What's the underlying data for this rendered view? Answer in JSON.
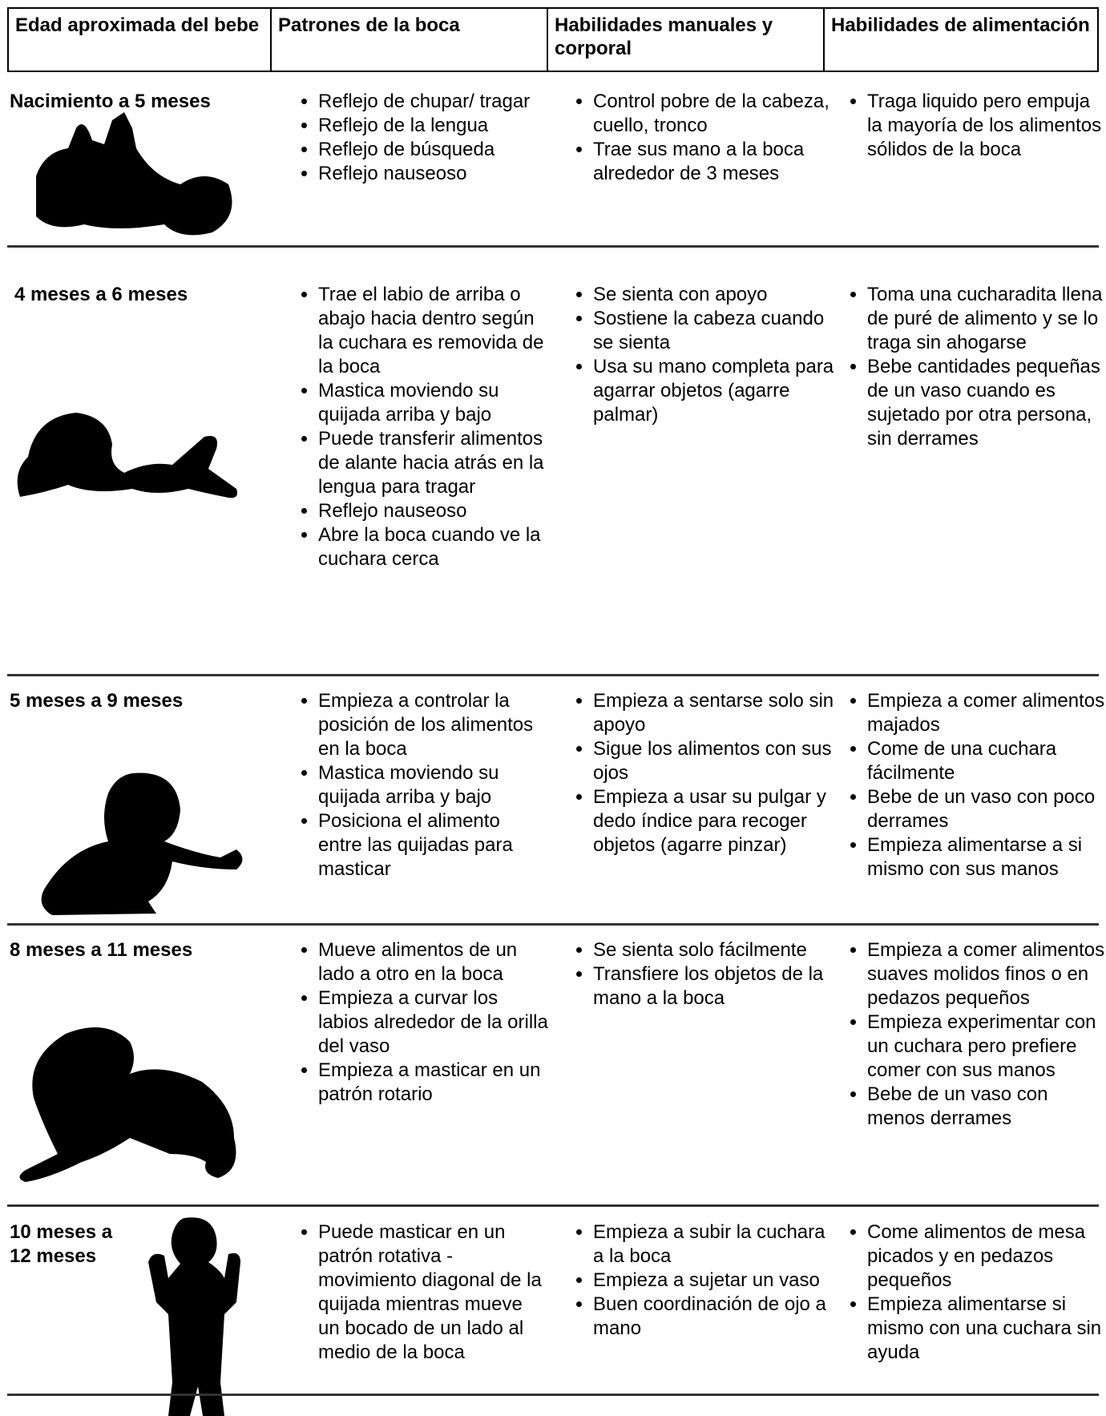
{
  "table": {
    "headers": [
      "Edad aproximada del bebe",
      "Patrones de la boca",
      "Habilidades manuales y corporal",
      "Habilidades de alimentación"
    ],
    "rows": [
      {
        "age": "Nacimiento a 5 meses",
        "mouth": [
          "Reflejo de chupar/ tragar",
          "Reflejo de la lengua",
          "Reflejo de búsqueda",
          "Reflejo nauseoso"
        ],
        "hands": [
          "Control pobre de la cabeza, cuello, tronco",
          "Trae sus mano a la boca alrededor de 3 meses"
        ],
        "feeding": [
          "Traga liquido pero empuja la mayoría de los alimentos sólidos de la boca"
        ]
      },
      {
        "age": "4 meses a 6 meses",
        "mouth": [
          "Trae el labio de arriba o abajo hacia dentro según la cuchara es removida de la boca",
          "Mastica moviendo su quijada arriba y bajo",
          "Puede transferir alimentos de alante hacia atrás en la lengua para tragar",
          "Reflejo nauseoso",
          "Abre la boca cuando ve la cuchara cerca"
        ],
        "hands": [
          "Se sienta con apoyo",
          "Sostiene la cabeza cuando se sienta",
          "Usa su mano completa para agarrar objetos (agarre palmar)"
        ],
        "feeding": [
          "Toma una cucharadita llena de puré de alimento y se lo traga sin ahogarse",
          "Bebe cantidades pequeñas de un vaso cuando es sujetado por otra persona, sin derrames"
        ]
      },
      {
        "age": "5 meses a 9 meses",
        "mouth": [
          "Empieza a controlar la posición de los alimentos en la boca",
          "Mastica moviendo su quijada arriba y bajo",
          "Posiciona el alimento entre las quijadas para masticar"
        ],
        "hands": [
          "Empieza a sentarse solo sin apoyo",
          "Sigue los alimentos con sus ojos",
          "Empieza a usar su pulgar y dedo índice para recoger objetos (agarre pinzar)"
        ],
        "feeding": [
          "Empieza a comer alimentos majados",
          "Come de una cuchara fácilmente",
          "Bebe de un vaso con poco derrames",
          "Empieza alimentarse a si mismo con sus manos"
        ]
      },
      {
        "age": "8 meses a 11 meses",
        "mouth": [
          "Mueve alimentos de un lado a otro en la boca",
          "Empieza a curvar los labios alrededor de la orilla del vaso",
          "Empieza a masticar en un patrón rotario"
        ],
        "hands": [
          "Se sienta solo fácilmente",
          "Transfiere los objetos de la mano a la boca"
        ],
        "feeding": [
          "Empieza a comer alimentos suaves molidos finos o en pedazos pequeños",
          "Empieza experimentar con un cuchara pero prefiere comer con sus manos",
          "Bebe de un vaso con menos derrames"
        ]
      },
      {
        "age": "10 meses a 12 meses",
        "mouth": [
          "Puede masticar en un patrón rotativa - movimiento diagonal de la quijada mientras mueve un bocado de un lado al medio de la boca"
        ],
        "hands": [
          "Empieza a subir la cuchara a la boca",
          "Empieza a sujetar un vaso",
          "Buen coordinación de ojo a mano"
        ],
        "feeding": [
          "Come alimentos de mesa picados y en pedazos pequeños",
          "Empieza alimentarse si mismo con una cuchara sin ayuda"
        ]
      }
    ]
  }
}
